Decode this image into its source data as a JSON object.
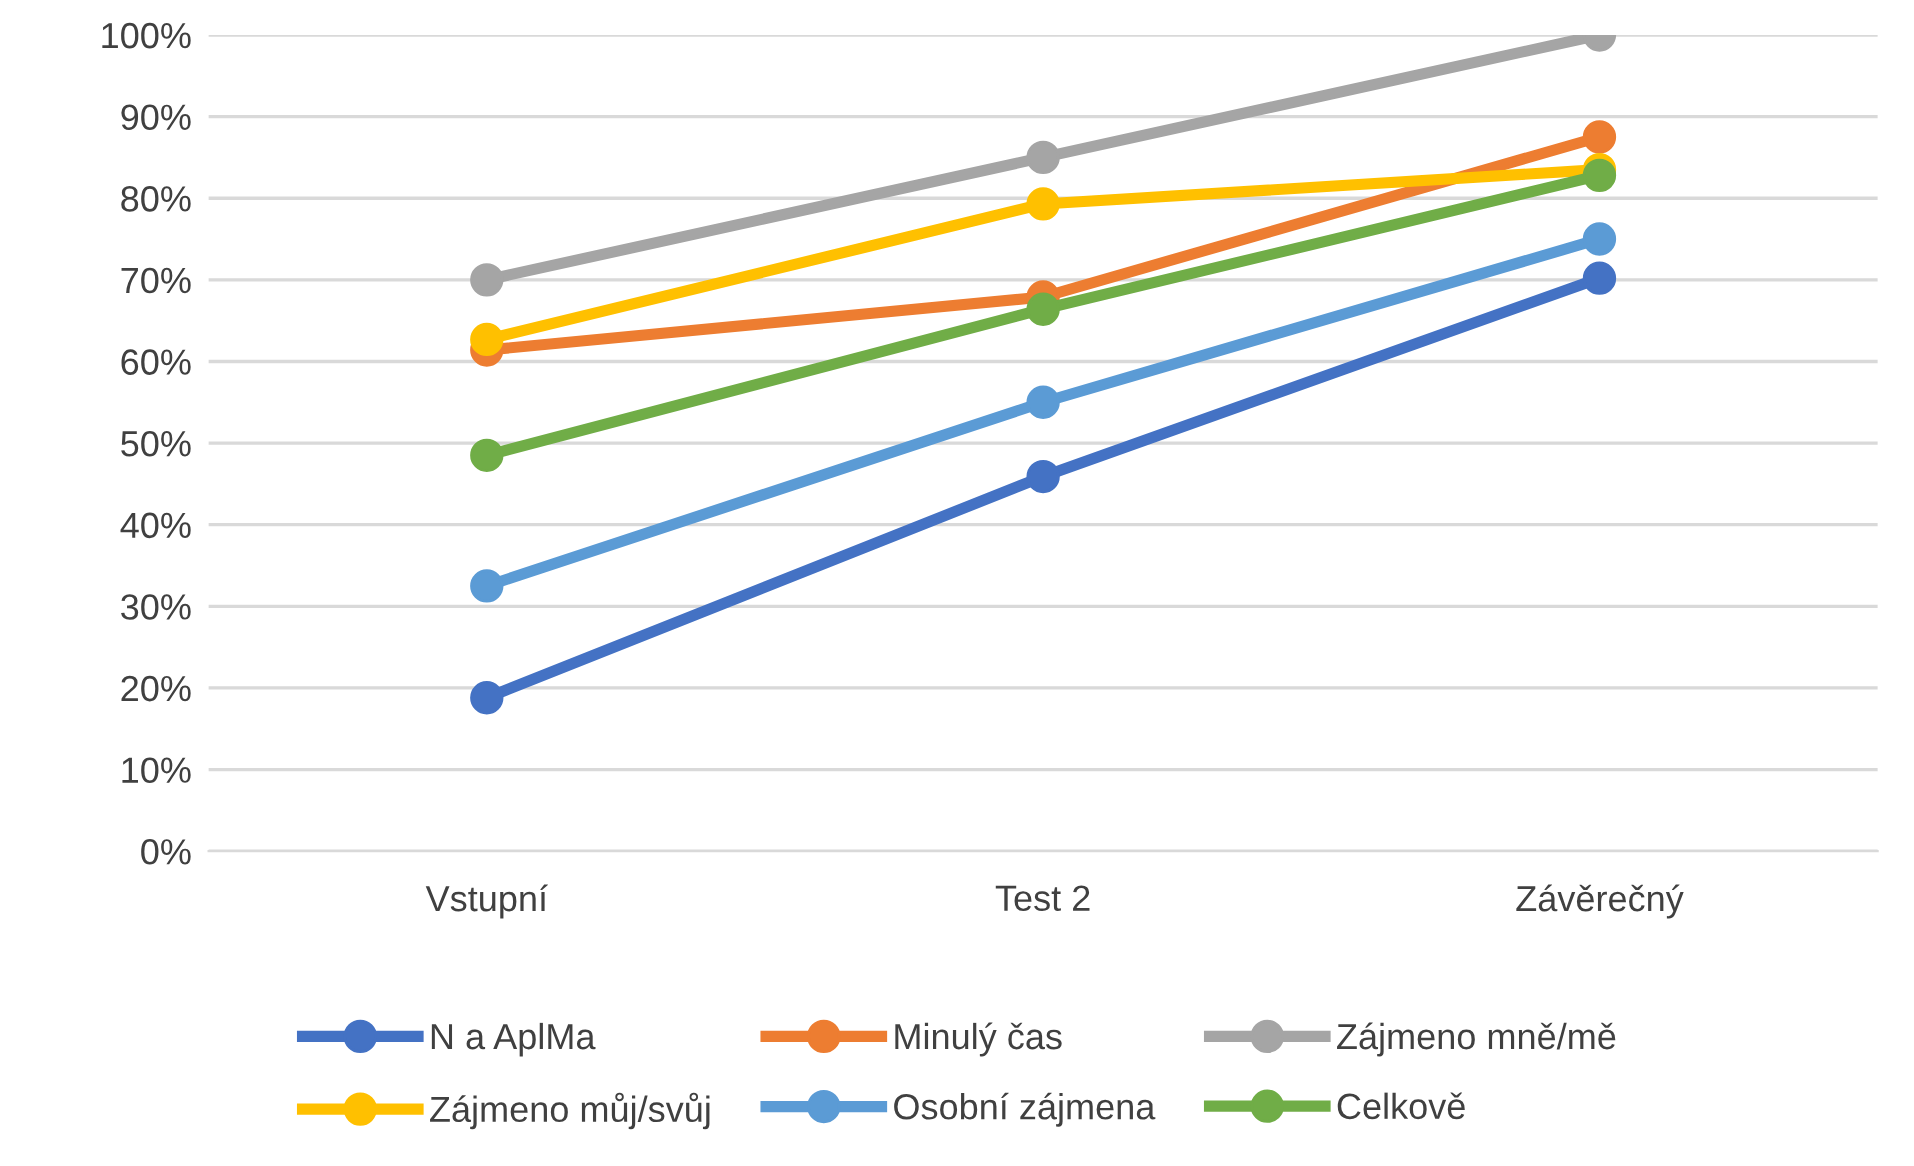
{
  "chart_data": {
    "type": "line",
    "categories": [
      "Vstupní",
      "Test 2",
      "Závěrečný"
    ],
    "series": [
      {
        "name": "N a AplMa",
        "color": "#4472c4",
        "values": [
          18.8,
          45.9,
          70.2
        ]
      },
      {
        "name": "Minulý čas",
        "color": "#ed7d31",
        "values": [
          61.4,
          67.9,
          87.5
        ]
      },
      {
        "name": "Zájmeno mně/mě",
        "color": "#a5a5a5",
        "values": [
          70,
          85,
          100
        ]
      },
      {
        "name": "Zájmeno můj/svůj",
        "color": "#ffc000",
        "values": [
          62.7,
          79.3,
          83.5
        ]
      },
      {
        "name": "Osobní zájmena",
        "color": "#5b9bd5",
        "values": [
          32.5,
          55,
          75
        ]
      },
      {
        "name": "Celkově",
        "color": "#70ad47",
        "values": [
          48.5,
          66.4,
          82.8
        ]
      }
    ],
    "ylim": [
      0,
      100
    ],
    "yticks": [
      {
        "value": 0,
        "label": "0%"
      },
      {
        "value": 10,
        "label": "10%"
      },
      {
        "value": 20,
        "label": "20%"
      },
      {
        "value": 30,
        "label": "30%"
      },
      {
        "value": 40,
        "label": "40%"
      },
      {
        "value": 50,
        "label": "50%"
      },
      {
        "value": 60,
        "label": "60%"
      },
      {
        "value": 70,
        "label": "70%"
      },
      {
        "value": 80,
        "label": "80%"
      },
      {
        "value": 90,
        "label": "90%"
      },
      {
        "value": 100,
        "label": "100%"
      }
    ],
    "grid": "y",
    "legend": "bottom",
    "marker": "circle",
    "line_style": "solid"
  }
}
